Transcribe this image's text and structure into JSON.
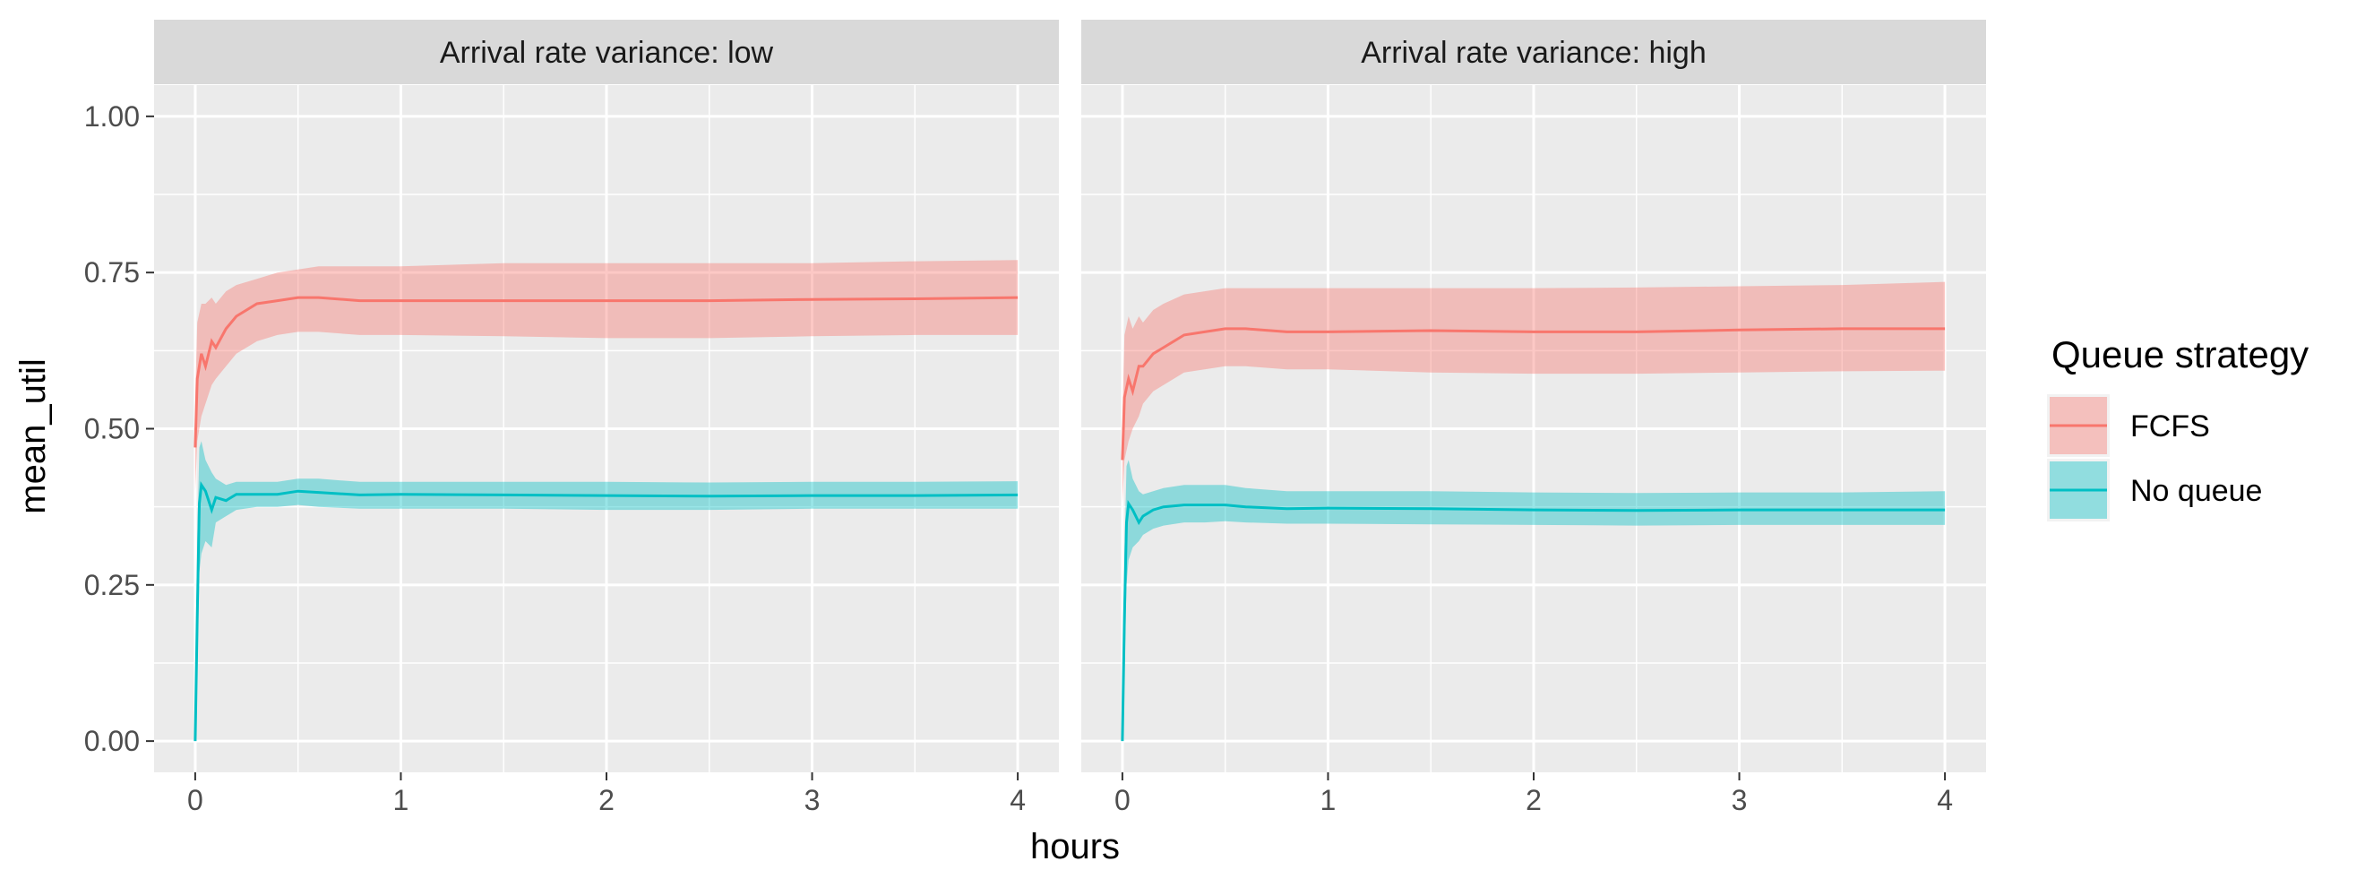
{
  "chart_data": {
    "type": "area",
    "xlabel": "hours",
    "ylabel": "mean_util",
    "xlim": [
      -0.2,
      4.2
    ],
    "ylim": [
      -0.05,
      1.05
    ],
    "x_ticks": [
      0,
      1,
      2,
      3,
      4
    ],
    "x_tick_labels": [
      "0",
      "1",
      "2",
      "3",
      "4"
    ],
    "y_ticks": [
      0,
      0.25,
      0.5,
      0.75,
      1.0
    ],
    "y_tick_labels": [
      "0.00",
      "0.25",
      "0.50",
      "0.75",
      "1.00"
    ],
    "grid": true,
    "legend": {
      "title": "Queue strategy",
      "position": "right",
      "entries": [
        {
          "label": "FCFS",
          "color": "#F8766D"
        },
        {
          "label": "No queue",
          "color": "#00BFC4"
        }
      ]
    },
    "panels": [
      {
        "title": "Arrival rate variance: low",
        "series": [
          {
            "name": "FCFS",
            "color": "#F8766D",
            "x": [
              0,
              0.01,
              0.03,
              0.05,
              0.08,
              0.1,
              0.15,
              0.2,
              0.3,
              0.4,
              0.5,
              0.6,
              0.8,
              1.0,
              1.5,
              2.0,
              2.5,
              3.0,
              3.5,
              4.0
            ],
            "y": [
              0.47,
              0.58,
              0.62,
              0.6,
              0.64,
              0.63,
              0.66,
              0.68,
              0.7,
              0.705,
              0.71,
              0.71,
              0.705,
              0.705,
              0.705,
              0.705,
              0.705,
              0.707,
              0.708,
              0.71
            ],
            "lower": [
              0.4,
              0.48,
              0.52,
              0.54,
              0.57,
              0.58,
              0.6,
              0.62,
              0.64,
              0.65,
              0.655,
              0.655,
              0.65,
              0.65,
              0.648,
              0.645,
              0.645,
              0.648,
              0.65,
              0.65
            ],
            "upper": [
              0.55,
              0.67,
              0.7,
              0.7,
              0.71,
              0.7,
              0.72,
              0.73,
              0.74,
              0.75,
              0.755,
              0.76,
              0.76,
              0.76,
              0.765,
              0.765,
              0.765,
              0.765,
              0.768,
              0.77
            ]
          },
          {
            "name": "No queue",
            "color": "#00BFC4",
            "x": [
              0,
              0.01,
              0.02,
              0.03,
              0.05,
              0.08,
              0.1,
              0.15,
              0.2,
              0.3,
              0.4,
              0.5,
              0.6,
              0.8,
              1.0,
              1.5,
              2.0,
              2.5,
              3.0,
              3.5,
              4.0
            ],
            "y": [
              0.0,
              0.2,
              0.38,
              0.41,
              0.4,
              0.37,
              0.39,
              0.385,
              0.395,
              0.395,
              0.395,
              0.4,
              0.398,
              0.394,
              0.395,
              0.394,
              0.393,
              0.392,
              0.393,
              0.393,
              0.394
            ],
            "lower": [
              0.0,
              0.1,
              0.27,
              0.3,
              0.32,
              0.31,
              0.35,
              0.36,
              0.37,
              0.375,
              0.375,
              0.378,
              0.375,
              0.372,
              0.372,
              0.372,
              0.37,
              0.37,
              0.372,
              0.372,
              0.372
            ],
            "upper": [
              0.0,
              0.32,
              0.47,
              0.48,
              0.45,
              0.43,
              0.42,
              0.41,
              0.415,
              0.415,
              0.415,
              0.42,
              0.42,
              0.415,
              0.415,
              0.415,
              0.415,
              0.414,
              0.415,
              0.415,
              0.416
            ]
          }
        ]
      },
      {
        "title": "Arrival rate variance: high",
        "series": [
          {
            "name": "FCFS",
            "color": "#F8766D",
            "x": [
              0,
              0.01,
              0.03,
              0.05,
              0.08,
              0.1,
              0.15,
              0.2,
              0.3,
              0.4,
              0.5,
              0.6,
              0.8,
              1.0,
              1.5,
              2.0,
              2.5,
              3.0,
              3.5,
              4.0
            ],
            "y": [
              0.45,
              0.55,
              0.58,
              0.56,
              0.6,
              0.6,
              0.62,
              0.63,
              0.65,
              0.655,
              0.66,
              0.66,
              0.655,
              0.655,
              0.657,
              0.655,
              0.655,
              0.658,
              0.66,
              0.66
            ],
            "lower": [
              0.38,
              0.45,
              0.48,
              0.5,
              0.52,
              0.54,
              0.56,
              0.57,
              0.59,
              0.595,
              0.6,
              0.6,
              0.595,
              0.595,
              0.59,
              0.588,
              0.588,
              0.59,
              0.592,
              0.593
            ],
            "upper": [
              0.52,
              0.65,
              0.68,
              0.66,
              0.68,
              0.67,
              0.69,
              0.7,
              0.715,
              0.72,
              0.725,
              0.725,
              0.725,
              0.725,
              0.725,
              0.725,
              0.726,
              0.728,
              0.73,
              0.735
            ]
          },
          {
            "name": "No queue",
            "color": "#00BFC4",
            "x": [
              0,
              0.01,
              0.02,
              0.03,
              0.05,
              0.08,
              0.1,
              0.15,
              0.2,
              0.3,
              0.4,
              0.5,
              0.6,
              0.8,
              1.0,
              1.5,
              2.0,
              2.5,
              3.0,
              3.5,
              4.0
            ],
            "y": [
              0.0,
              0.2,
              0.35,
              0.38,
              0.37,
              0.35,
              0.36,
              0.37,
              0.375,
              0.378,
              0.378,
              0.378,
              0.375,
              0.372,
              0.373,
              0.372,
              0.37,
              0.369,
              0.37,
              0.37,
              0.37
            ],
            "lower": [
              0.0,
              0.1,
              0.25,
              0.29,
              0.31,
              0.32,
              0.33,
              0.34,
              0.345,
              0.35,
              0.35,
              0.352,
              0.35,
              0.348,
              0.348,
              0.347,
              0.346,
              0.345,
              0.346,
              0.346,
              0.346
            ],
            "upper": [
              0.0,
              0.3,
              0.44,
              0.45,
              0.42,
              0.4,
              0.395,
              0.4,
              0.405,
              0.41,
              0.41,
              0.41,
              0.405,
              0.4,
              0.4,
              0.4,
              0.398,
              0.397,
              0.398,
              0.398,
              0.4
            ]
          }
        ]
      }
    ]
  }
}
